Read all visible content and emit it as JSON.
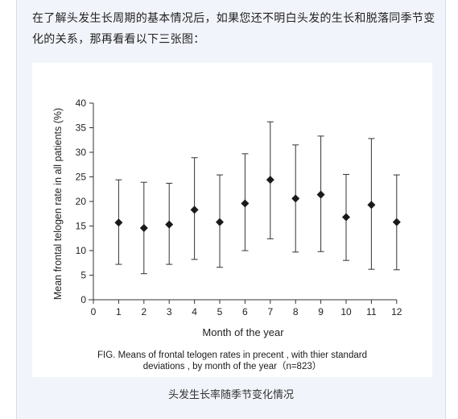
{
  "article": {
    "intro_text": "在了解头发生长周期的基本情况后，如果您还不明白头发的生长和脱落同季节变化的关系，那再看看以下三张图：",
    "figure_caption_line1": "FIG. Means of frontal telogen rates in precent , with thier standard",
    "figure_caption_line2": "deviations , by month of the year（n=823）",
    "subcaption": "头发生长率随季节变化情况"
  },
  "chart_data": {
    "type": "scatter",
    "title": "",
    "xlabel": "Month of the year",
    "ylabel": "Mean frontal telogen rate in all patients (%)",
    "xlim": [
      0,
      12
    ],
    "ylim": [
      0,
      40
    ],
    "x_ticks": [
      0,
      1,
      2,
      3,
      4,
      5,
      6,
      7,
      8,
      9,
      10,
      11,
      12
    ],
    "y_ticks": [
      0,
      5,
      10,
      15,
      20,
      25,
      30,
      35,
      40
    ],
    "grid": false,
    "marker": "diamond",
    "error_bars": true,
    "series": [
      {
        "x": [
          1,
          2,
          3,
          4,
          5,
          6,
          7,
          8,
          9,
          10,
          11,
          12
        ],
        "y": [
          15.7,
          14.6,
          15.3,
          18.3,
          15.8,
          19.6,
          24.4,
          20.6,
          21.4,
          16.8,
          19.3,
          15.8
        ],
        "lower": [
          7.2,
          5.3,
          7.2,
          8.2,
          6.6,
          10.0,
          12.4,
          9.7,
          9.8,
          8.0,
          6.2,
          6.1
        ],
        "upper": [
          24.4,
          23.9,
          23.7,
          28.9,
          25.4,
          29.7,
          36.2,
          31.5,
          33.3,
          25.5,
          32.8,
          25.4
        ]
      }
    ]
  }
}
